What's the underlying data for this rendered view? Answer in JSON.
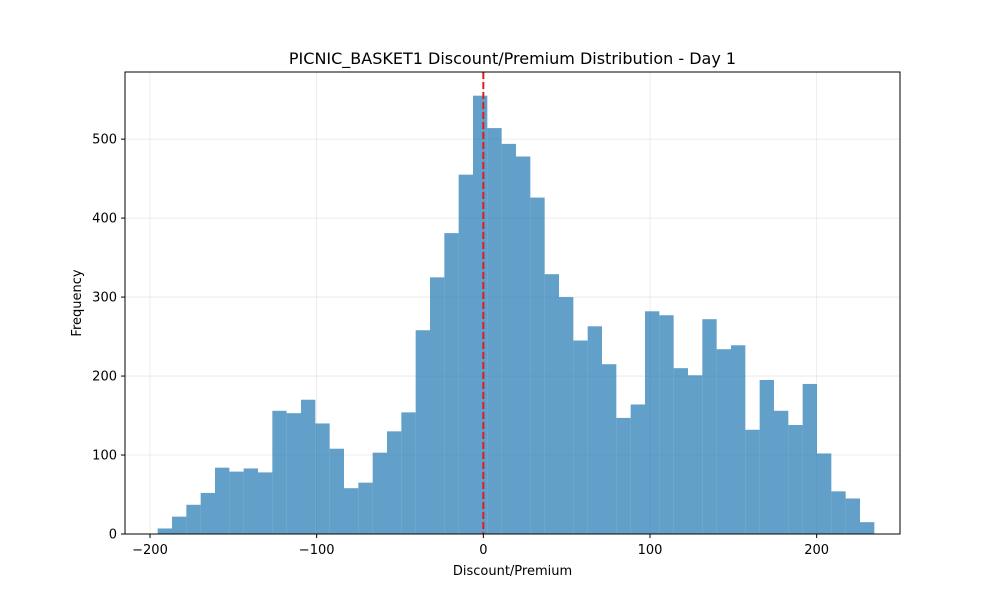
{
  "chart_data": {
    "type": "bar",
    "title": "PICNIC_BASKET1 Discount/Premium Distribution - Day 1",
    "xlabel": "Discount/Premium",
    "ylabel": "Frequency",
    "xlim": [
      -215,
      250
    ],
    "ylim": [
      0,
      585
    ],
    "x_ticks": [
      -200,
      -100,
      0,
      100,
      200
    ],
    "x_tick_labels": [
      "−200",
      "−100",
      "0",
      "100",
      "200"
    ],
    "y_ticks": [
      0,
      100,
      200,
      300,
      400,
      500
    ],
    "y_tick_labels": [
      "0",
      "100",
      "200",
      "300",
      "400",
      "500"
    ],
    "grid": true,
    "bar_color": "#1f77b4",
    "bar_alpha": 0.7,
    "reference_line": {
      "x": 0,
      "color": "#e31a1c",
      "style": "dashed"
    },
    "bins": [
      {
        "x0": -195.4,
        "x1": -186.8,
        "count": 7
      },
      {
        "x0": -186.8,
        "x1": -178.2,
        "count": 22
      },
      {
        "x0": -178.2,
        "x1": -169.6,
        "count": 37
      },
      {
        "x0": -169.6,
        "x1": -161.0,
        "count": 52
      },
      {
        "x0": -161.0,
        "x1": -152.4,
        "count": 84
      },
      {
        "x0": -152.4,
        "x1": -143.8,
        "count": 79
      },
      {
        "x0": -143.8,
        "x1": -135.2,
        "count": 83
      },
      {
        "x0": -135.2,
        "x1": -126.6,
        "count": 78
      },
      {
        "x0": -126.6,
        "x1": -118.0,
        "count": 156
      },
      {
        "x0": -118.0,
        "x1": -109.4,
        "count": 153
      },
      {
        "x0": -109.4,
        "x1": -100.8,
        "count": 170
      },
      {
        "x0": -100.8,
        "x1": -92.2,
        "count": 140
      },
      {
        "x0": -92.2,
        "x1": -83.6,
        "count": 108
      },
      {
        "x0": -83.6,
        "x1": -75.0,
        "count": 58
      },
      {
        "x0": -75.0,
        "x1": -66.4,
        "count": 65
      },
      {
        "x0": -66.4,
        "x1": -57.8,
        "count": 103
      },
      {
        "x0": -57.8,
        "x1": -49.2,
        "count": 130
      },
      {
        "x0": -49.2,
        "x1": -40.6,
        "count": 154
      },
      {
        "x0": -40.6,
        "x1": -32.0,
        "count": 258
      },
      {
        "x0": -32.0,
        "x1": -23.4,
        "count": 325
      },
      {
        "x0": -23.4,
        "x1": -14.8,
        "count": 381
      },
      {
        "x0": -14.8,
        "x1": -6.2,
        "count": 455
      },
      {
        "x0": -6.2,
        "x1": 2.4,
        "count": 555
      },
      {
        "x0": 2.4,
        "x1": 11.0,
        "count": 514
      },
      {
        "x0": 11.0,
        "x1": 19.6,
        "count": 494
      },
      {
        "x0": 19.6,
        "x1": 28.2,
        "count": 478
      },
      {
        "x0": 28.2,
        "x1": 36.8,
        "count": 426
      },
      {
        "x0": 36.8,
        "x1": 45.4,
        "count": 329
      },
      {
        "x0": 45.4,
        "x1": 54.0,
        "count": 300
      },
      {
        "x0": 54.0,
        "x1": 62.6,
        "count": 245
      },
      {
        "x0": 62.6,
        "x1": 71.2,
        "count": 263
      },
      {
        "x0": 71.2,
        "x1": 79.8,
        "count": 215
      },
      {
        "x0": 79.8,
        "x1": 88.4,
        "count": 147
      },
      {
        "x0": 88.4,
        "x1": 97.0,
        "count": 164
      },
      {
        "x0": 97.0,
        "x1": 105.6,
        "count": 282
      },
      {
        "x0": 105.6,
        "x1": 114.2,
        "count": 277
      },
      {
        "x0": 114.2,
        "x1": 122.8,
        "count": 210
      },
      {
        "x0": 122.8,
        "x1": 131.4,
        "count": 201
      },
      {
        "x0": 131.4,
        "x1": 140.0,
        "count": 272
      },
      {
        "x0": 140.0,
        "x1": 148.6,
        "count": 234
      },
      {
        "x0": 148.6,
        "x1": 157.2,
        "count": 239
      },
      {
        "x0": 157.2,
        "x1": 165.8,
        "count": 132
      },
      {
        "x0": 165.8,
        "x1": 174.4,
        "count": 195
      },
      {
        "x0": 174.4,
        "x1": 183.0,
        "count": 156
      },
      {
        "x0": 183.0,
        "x1": 191.6,
        "count": 138
      },
      {
        "x0": 191.6,
        "x1": 200.2,
        "count": 190
      },
      {
        "x0": 200.2,
        "x1": 208.8,
        "count": 102
      },
      {
        "x0": 208.8,
        "x1": 217.4,
        "count": 54
      },
      {
        "x0": 217.4,
        "x1": 226.0,
        "count": 45
      },
      {
        "x0": 226.0,
        "x1": 234.6,
        "count": 15
      }
    ]
  }
}
